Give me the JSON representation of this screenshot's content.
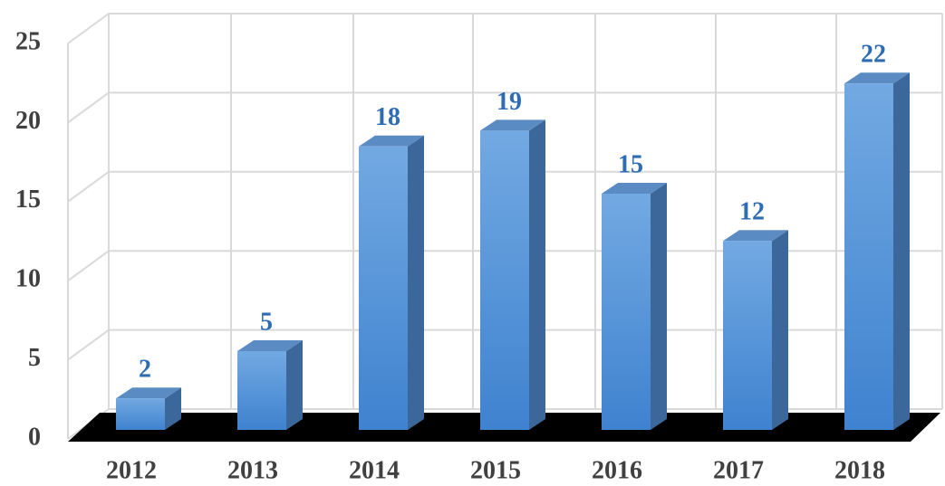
{
  "chart_data": {
    "type": "bar3d",
    "categories": [
      "2012",
      "2013",
      "2014",
      "2015",
      "2016",
      "2017",
      "2018"
    ],
    "values": [
      2,
      5,
      18,
      19,
      15,
      12,
      22
    ],
    "color": "#4f8fd6",
    "ylim": [
      0,
      25
    ],
    "yticks": [
      0,
      5,
      10,
      15,
      20,
      25
    ],
    "grid": true
  }
}
